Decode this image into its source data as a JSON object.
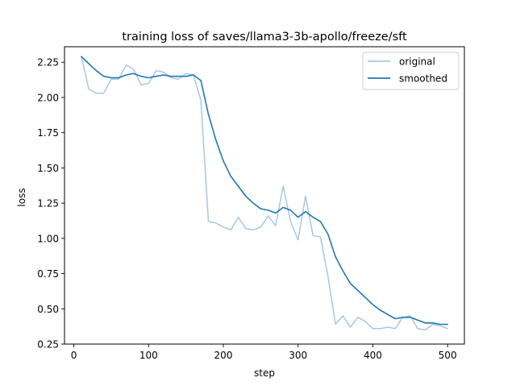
{
  "chart_data": {
    "type": "line",
    "title": "training loss of saves/llama3-3b-apollo/freeze/sft",
    "xlabel": "step",
    "ylabel": "loss",
    "xlim": [
      -12.5,
      522.5
    ],
    "ylim": [
      0.25,
      2.36
    ],
    "xticks": [
      0,
      100,
      200,
      300,
      400,
      500
    ],
    "yticks": [
      0.25,
      0.5,
      0.75,
      1.0,
      1.25,
      1.5,
      1.75,
      2.0,
      2.25
    ],
    "ytick_labels": [
      "0.25",
      "0.50",
      "0.75",
      "1.00",
      "1.25",
      "1.50",
      "1.75",
      "2.00",
      "2.25"
    ],
    "legend_position": "top-right",
    "grid": false,
    "x": [
      10,
      20,
      30,
      40,
      50,
      60,
      70,
      80,
      90,
      100,
      110,
      120,
      130,
      140,
      150,
      160,
      170,
      180,
      190,
      200,
      210,
      220,
      230,
      240,
      250,
      260,
      270,
      280,
      290,
      300,
      310,
      320,
      330,
      340,
      350,
      360,
      370,
      380,
      390,
      400,
      410,
      420,
      430,
      440,
      450,
      460,
      470,
      480,
      490,
      500
    ],
    "series": [
      {
        "name": "original",
        "color": "#a6c8e0",
        "values": [
          2.29,
          2.06,
          2.03,
          2.03,
          2.13,
          2.13,
          2.23,
          2.2,
          2.09,
          2.1,
          2.19,
          2.18,
          2.14,
          2.13,
          2.17,
          2.16,
          1.98,
          1.12,
          1.11,
          1.08,
          1.06,
          1.15,
          1.07,
          1.06,
          1.08,
          1.16,
          1.09,
          1.37,
          1.12,
          0.99,
          1.3,
          1.02,
          1.01,
          0.73,
          0.39,
          0.45,
          0.37,
          0.44,
          0.41,
          0.36,
          0.36,
          0.37,
          0.36,
          0.44,
          0.45,
          0.36,
          0.35,
          0.39,
          0.38,
          0.36
        ]
      },
      {
        "name": "smoothed",
        "color": "#1f77b4",
        "values": [
          2.29,
          2.24,
          2.19,
          2.15,
          2.14,
          2.14,
          2.16,
          2.17,
          2.15,
          2.14,
          2.15,
          2.16,
          2.15,
          2.15,
          2.15,
          2.16,
          2.12,
          1.88,
          1.7,
          1.55,
          1.44,
          1.37,
          1.3,
          1.25,
          1.21,
          1.2,
          1.18,
          1.22,
          1.2,
          1.15,
          1.19,
          1.15,
          1.12,
          1.03,
          0.87,
          0.77,
          0.68,
          0.63,
          0.58,
          0.53,
          0.49,
          0.46,
          0.43,
          0.44,
          0.44,
          0.42,
          0.4,
          0.4,
          0.39,
          0.39
        ]
      }
    ]
  }
}
